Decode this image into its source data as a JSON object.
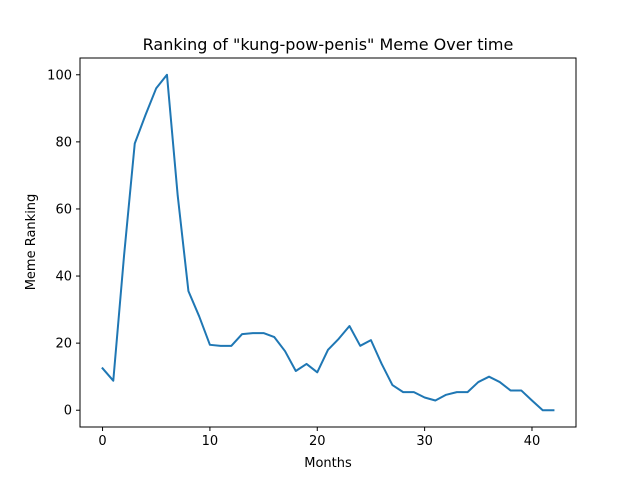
{
  "chart_data": {
    "type": "line",
    "title": "Ranking of \"kung-pow-penis\" Meme Over time",
    "xlabel": "Months",
    "ylabel": "Meme Ranking",
    "xlim": [
      -2.1,
      44.1
    ],
    "ylim": [
      -5,
      105
    ],
    "x_ticks": [
      0,
      10,
      20,
      30,
      40
    ],
    "y_ticks": [
      0,
      20,
      40,
      60,
      80,
      100
    ],
    "grid": false,
    "legend": "none",
    "series": [
      {
        "color": "#1f77b4",
        "x": [
          0,
          1,
          2,
          3,
          4,
          5,
          6,
          7,
          8,
          9,
          10,
          11,
          12,
          13,
          14,
          15,
          16,
          17,
          18,
          19,
          20,
          21,
          22,
          23,
          24,
          25,
          26,
          27,
          28,
          29,
          30,
          31,
          32,
          33,
          34,
          35,
          36,
          37,
          38,
          39,
          40,
          41,
          42
        ],
        "values": [
          12.5,
          8.8,
          46,
          79.5,
          88,
          96,
          100,
          64,
          35.5,
          28,
          19.5,
          19.2,
          19.2,
          22.7,
          23,
          23,
          21.8,
          17.6,
          11.7,
          13.8,
          11.3,
          18,
          21.3,
          25.1,
          19.2,
          20.9,
          13.8,
          7.5,
          5.4,
          5.4,
          3.8,
          2.9,
          4.6,
          5.4,
          5.4,
          8.4,
          10,
          8.4,
          5.9,
          5.9,
          2.9,
          0,
          0
        ]
      }
    ]
  }
}
